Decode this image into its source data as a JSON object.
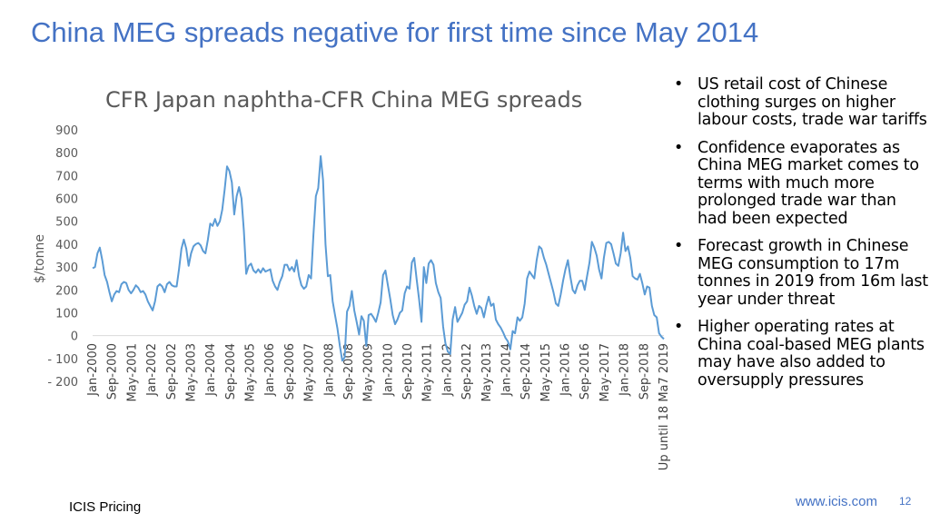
{
  "slide": {
    "title": "China MEG spreads negative for first time since May 2014",
    "footer_left": "ICIS Pricing",
    "footer_url": "www.icis.com",
    "page_number": "12"
  },
  "bullets": [
    "US retail cost of Chinese clothing surges on higher labour costs, trade war tariffs",
    "Confidence evaporates as China MEG market comes to terms with much more prolonged trade war than had been expected",
    "Forecast growth in Chinese MEG consumption to 17m tonnes in 2019 from 16m last year under threat",
    "Higher operating rates at China coal-based MEG plants may have also added to oversupply pressures"
  ],
  "colors": {
    "title": "#4472c4",
    "line": "#5b9bd5",
    "url": "#4472c4"
  },
  "chart_data": {
    "type": "line",
    "title": "CFR Japan naphtha-CFR China MEG spreads",
    "ylabel": "$/tonne",
    "xlabel": "",
    "ylim": [
      -200,
      900
    ],
    "yticks": [
      900,
      800,
      700,
      600,
      500,
      400,
      300,
      200,
      100,
      0,
      -100,
      -200
    ],
    "ytick_labels": [
      "900",
      "800",
      "700",
      "600",
      "500",
      "400",
      "300",
      "200",
      "100",
      "0",
      "- 100",
      "- 200"
    ],
    "grid": false,
    "legend": "none",
    "x_tick_labels": [
      "Jan-2000",
      "Sep-2000",
      "May-2001",
      "Jan-2002",
      "Sep-2002",
      "May-2003",
      "Jan-2004",
      "Sep-2004",
      "May-2005",
      "Jan-2006",
      "Sep-2006",
      "May-2007",
      "Jan-2008",
      "Sep-2008",
      "May-2009",
      "Jan-2010",
      "Sep-2010",
      "May-2011",
      "Jan-2012",
      "Sep-2012",
      "May-2013",
      "Jan-2014",
      "Sep-2014",
      "May-2015",
      "Jan-2016",
      "Sep-2016",
      "May-2017",
      "Jan-2018",
      "Sep-2018",
      "Up until 18 Ma7 2019"
    ],
    "series": [
      {
        "values": [
          295,
          300,
          360,
          385,
          330,
          265,
          235,
          190,
          150,
          180,
          195,
          190,
          225,
          235,
          230,
          200,
          185,
          200,
          220,
          210,
          190,
          195,
          180,
          150,
          130,
          110,
          150,
          215,
          225,
          215,
          190,
          225,
          235,
          220,
          215,
          215,
          290,
          380,
          420,
          380,
          305,
          360,
          390,
          400,
          405,
          395,
          370,
          360,
          420,
          490,
          480,
          510,
          480,
          500,
          550,
          640,
          740,
          720,
          670,
          530,
          610,
          650,
          600,
          460,
          270,
          305,
          315,
          285,
          275,
          290,
          275,
          295,
          280,
          285,
          290,
          240,
          215,
          200,
          235,
          260,
          310,
          310,
          285,
          300,
          280,
          330,
          260,
          220,
          205,
          215,
          265,
          250,
          440,
          610,
          645,
          785,
          680,
          400,
          260,
          265,
          150,
          90,
          30,
          -45,
          -110,
          -95,
          105,
          130,
          195,
          110,
          60,
          5,
          85,
          65,
          -45,
          90,
          95,
          80,
          60,
          100,
          145,
          265,
          285,
          220,
          160,
          90,
          50,
          70,
          100,
          110,
          185,
          215,
          205,
          320,
          340,
          245,
          160,
          60,
          300,
          230,
          315,
          330,
          310,
          230,
          190,
          165,
          40,
          -35,
          -70,
          -80,
          70,
          125,
          60,
          80,
          100,
          135,
          150,
          210,
          175,
          130,
          95,
          130,
          120,
          80,
          130,
          170,
          130,
          140,
          70,
          50,
          35,
          15,
          -10,
          -25,
          -60,
          20,
          10,
          80,
          65,
          80,
          140,
          250,
          280,
          265,
          250,
          330,
          390,
          380,
          340,
          310,
          270,
          230,
          190,
          140,
          130,
          180,
          240,
          290,
          330,
          260,
          200,
          185,
          220,
          240,
          240,
          200,
          260,
          320,
          410,
          385,
          350,
          290,
          250,
          340,
          405,
          410,
          400,
          360,
          315,
          305,
          360,
          450,
          370,
          390,
          340,
          260,
          250,
          245,
          270,
          230,
          180,
          215,
          210,
          130,
          90,
          80,
          10,
          -5,
          -15
        ]
      }
    ]
  }
}
